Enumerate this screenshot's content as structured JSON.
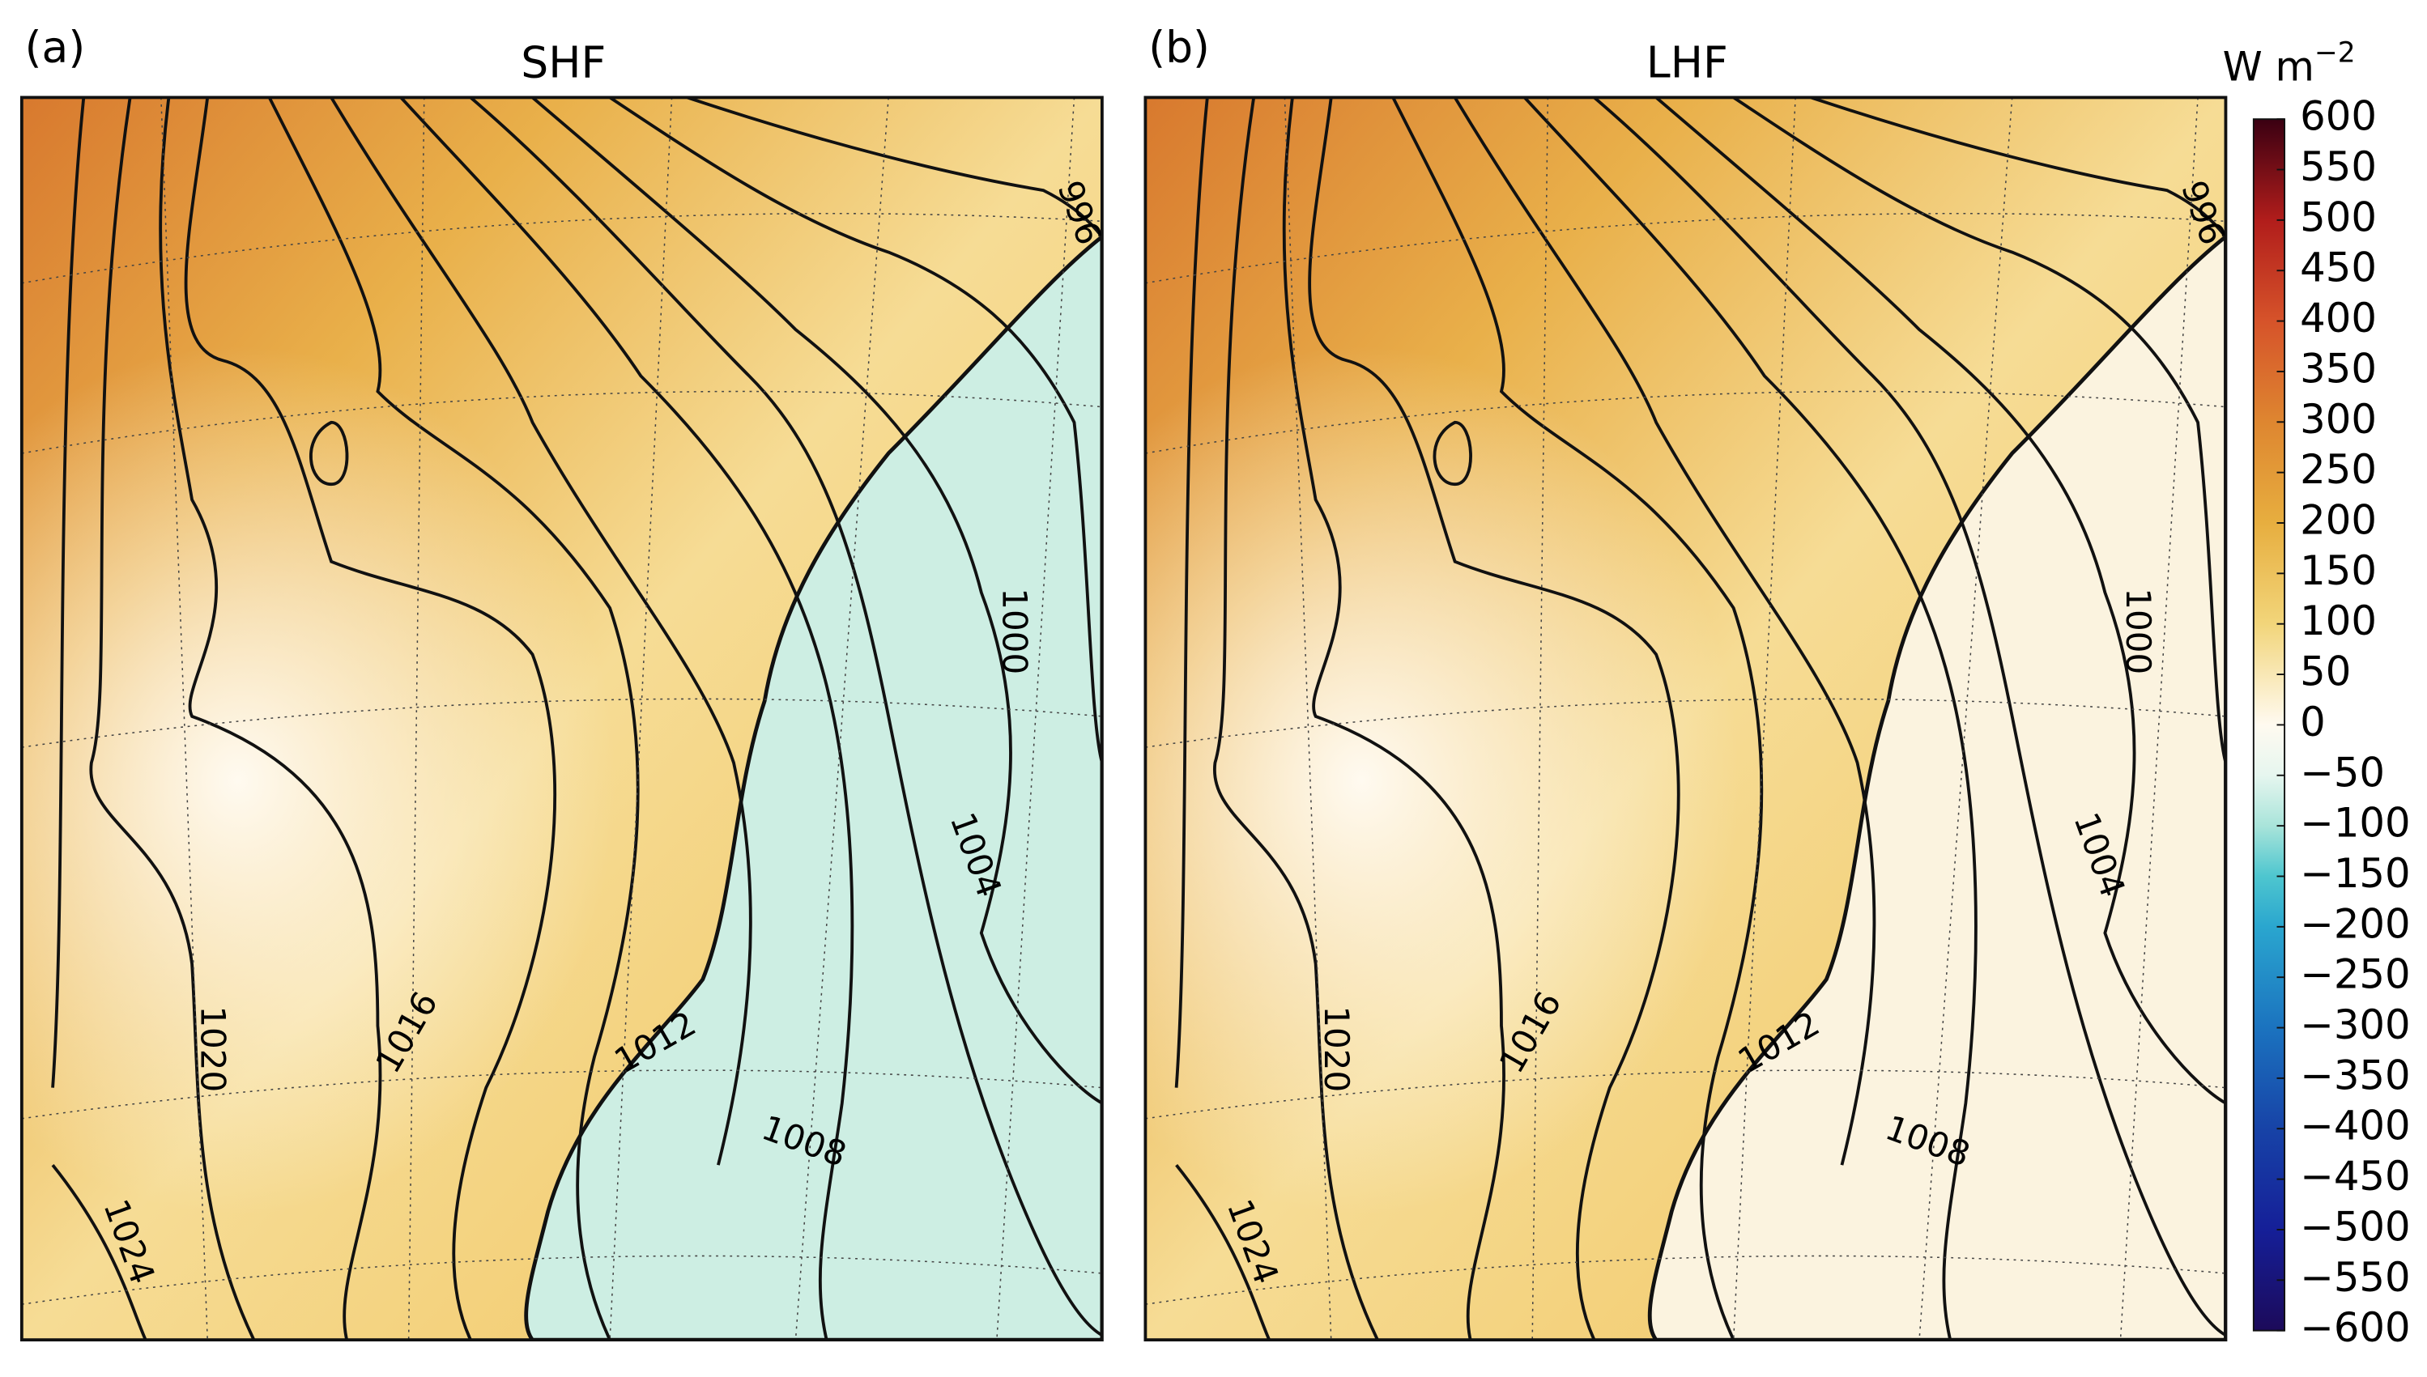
{
  "panels": [
    {
      "label": "(a)",
      "title": "SHF",
      "land_color": "#cdeee3",
      "contour_labels": [
        1024,
        1020,
        1016,
        1012,
        1008,
        1004,
        1000,
        996
      ]
    },
    {
      "label": "(b)",
      "title": "LHF",
      "land_color": "#fbf3df",
      "contour_labels": [
        1024,
        1020,
        1016,
        1012,
        1008,
        1004,
        1000,
        996
      ]
    }
  ],
  "colorbar": {
    "unit": "W m",
    "unit_exponent": "−2",
    "ylim": [
      -600,
      600
    ],
    "ticks": [
      600,
      550,
      500,
      450,
      400,
      350,
      300,
      250,
      200,
      150,
      100,
      50,
      0,
      {
        "value": -50,
        "label": "−50"
      },
      {
        "value": -100,
        "label": "−100"
      },
      {
        "value": -150,
        "label": "−150"
      },
      {
        "value": -200,
        "label": "−200"
      },
      {
        "value": -250,
        "label": "−250"
      },
      {
        "value": -300,
        "label": "−300"
      },
      {
        "value": -350,
        "label": "−350"
      },
      {
        "value": -400,
        "label": "−400"
      },
      {
        "value": -450,
        "label": "−450"
      },
      {
        "value": -500,
        "label": "−500"
      },
      {
        "value": -550,
        "label": "−550"
      },
      {
        "value": -600,
        "label": "−600"
      }
    ],
    "colormap": [
      {
        "value": 600,
        "color": "#3a0012"
      },
      {
        "value": 500,
        "color": "#b11d1b"
      },
      {
        "value": 400,
        "color": "#d6532a"
      },
      {
        "value": 300,
        "color": "#de8630"
      },
      {
        "value": 200,
        "color": "#e7ae3f"
      },
      {
        "value": 100,
        "color": "#f2d57a"
      },
      {
        "value": 0,
        "color": "#fffaf0"
      },
      {
        "value": -50,
        "color": "#e6f6ef"
      },
      {
        "value": -100,
        "color": "#a9e4da"
      },
      {
        "value": -150,
        "color": "#4ec6cf"
      },
      {
        "value": -200,
        "color": "#2aa6cf"
      },
      {
        "value": -300,
        "color": "#1b73bf"
      },
      {
        "value": -400,
        "color": "#1743a7"
      },
      {
        "value": -500,
        "color": "#151f98"
      },
      {
        "value": -600,
        "color": "#1c0a5a"
      }
    ]
  }
}
